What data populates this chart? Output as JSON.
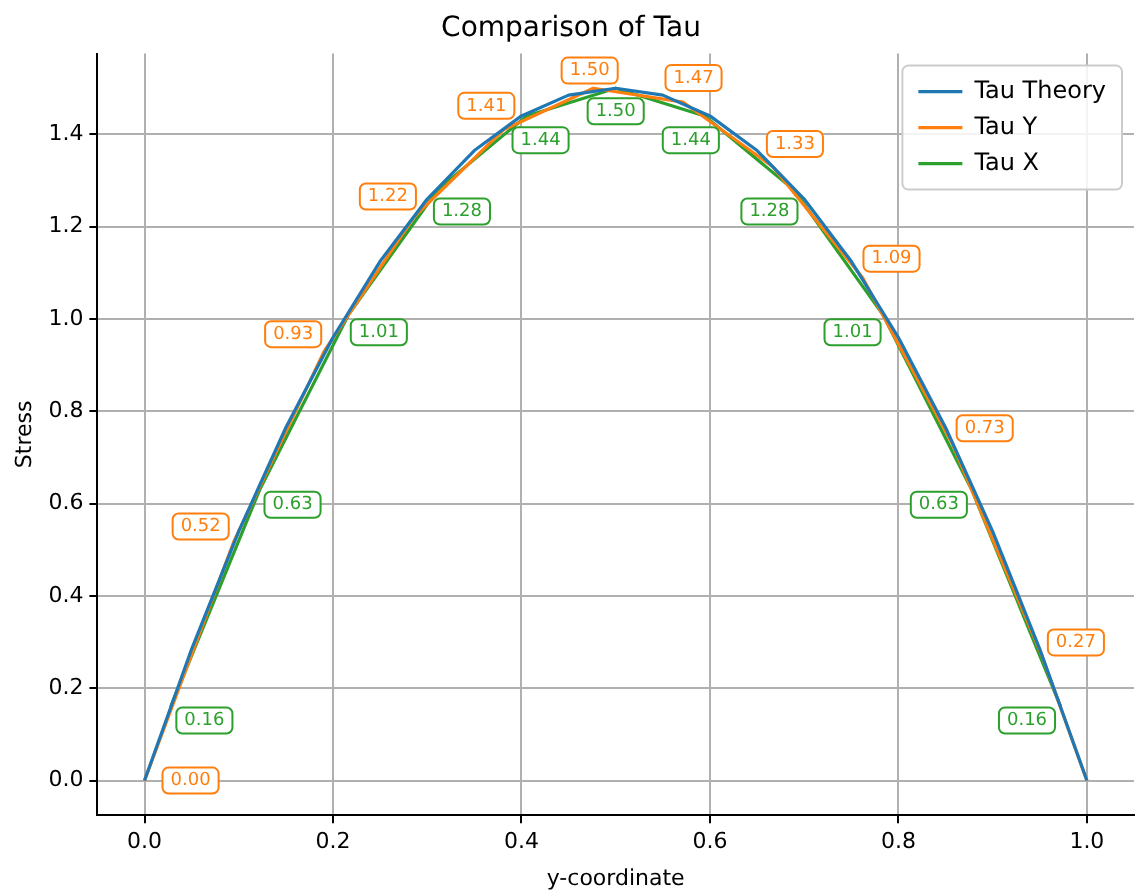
{
  "chart_data": {
    "type": "line",
    "title": "Comparison of Tau",
    "xlabel": "y-coordinate",
    "ylabel": "Stress",
    "series": [
      {
        "name": "Tau Theory",
        "color": "#1f77b4",
        "x": [
          0,
          0.05,
          0.1,
          0.15,
          0.2,
          0.25,
          0.3,
          0.35,
          0.4,
          0.45,
          0.5,
          0.55,
          0.6,
          0.65,
          0.7,
          0.75,
          0.8,
          0.85,
          0.9,
          0.95,
          1.0
        ],
        "values": [
          0,
          0.285,
          0.54,
          0.765,
          0.96,
          1.125,
          1.26,
          1.365,
          1.44,
          1.485,
          1.5,
          1.485,
          1.44,
          1.365,
          1.26,
          1.125,
          0.96,
          0.765,
          0.54,
          0.285,
          0
        ]
      },
      {
        "name": "Tau Y",
        "color": "#ff7f0e",
        "x": [
          0,
          0.0952,
          0.1905,
          0.2857,
          0.381,
          0.4762,
          0.5714,
          0.6667,
          0.7619,
          0.8571,
          0.9524,
          1.0
        ],
        "values": [
          0.0,
          0.52,
          0.93,
          1.22,
          1.41,
          1.5,
          1.47,
          1.33,
          1.09,
          0.73,
          0.27,
          0
        ],
        "value_labels": [
          "0.00",
          "0.52",
          "0.93",
          "1.22",
          "1.41",
          "1.50",
          "1.47",
          "1.33",
          "1.09",
          "0.73",
          "0.27",
          null
        ]
      },
      {
        "name": "Tau X",
        "color": "#2ca02c",
        "x": [
          0.0278,
          0.1222,
          0.2167,
          0.3111,
          0.4056,
          0.5,
          0.5944,
          0.6889,
          0.7833,
          0.8778,
          0.9722
        ],
        "values": [
          0.16,
          0.63,
          1.01,
          1.28,
          1.44,
          1.5,
          1.44,
          1.28,
          1.01,
          0.63,
          0.16
        ],
        "value_labels": [
          "0.16",
          "0.63",
          "1.01",
          "1.28",
          "1.44",
          "1.50",
          "1.44",
          "1.28",
          "1.01",
          "0.63",
          "0.16"
        ]
      }
    ],
    "xlim": [
      -0.05,
      1.05
    ],
    "xticks": [
      {
        "value": 0,
        "label": "0.0"
      },
      0.2,
      0.4,
      0.6,
      0.8,
      {
        "value": 1,
        "label": "1.0"
      }
    ],
    "ylim": [
      -0.075,
      1.575
    ],
    "yticks": [
      {
        "value": 0,
        "label": "0.0"
      },
      0.2,
      0.4,
      0.6,
      0.8,
      {
        "value": 1,
        "label": "1.0"
      },
      1.2,
      1.4
    ],
    "grid": true,
    "legend": "top right",
    "marker": "none",
    "line_style": "solid"
  }
}
